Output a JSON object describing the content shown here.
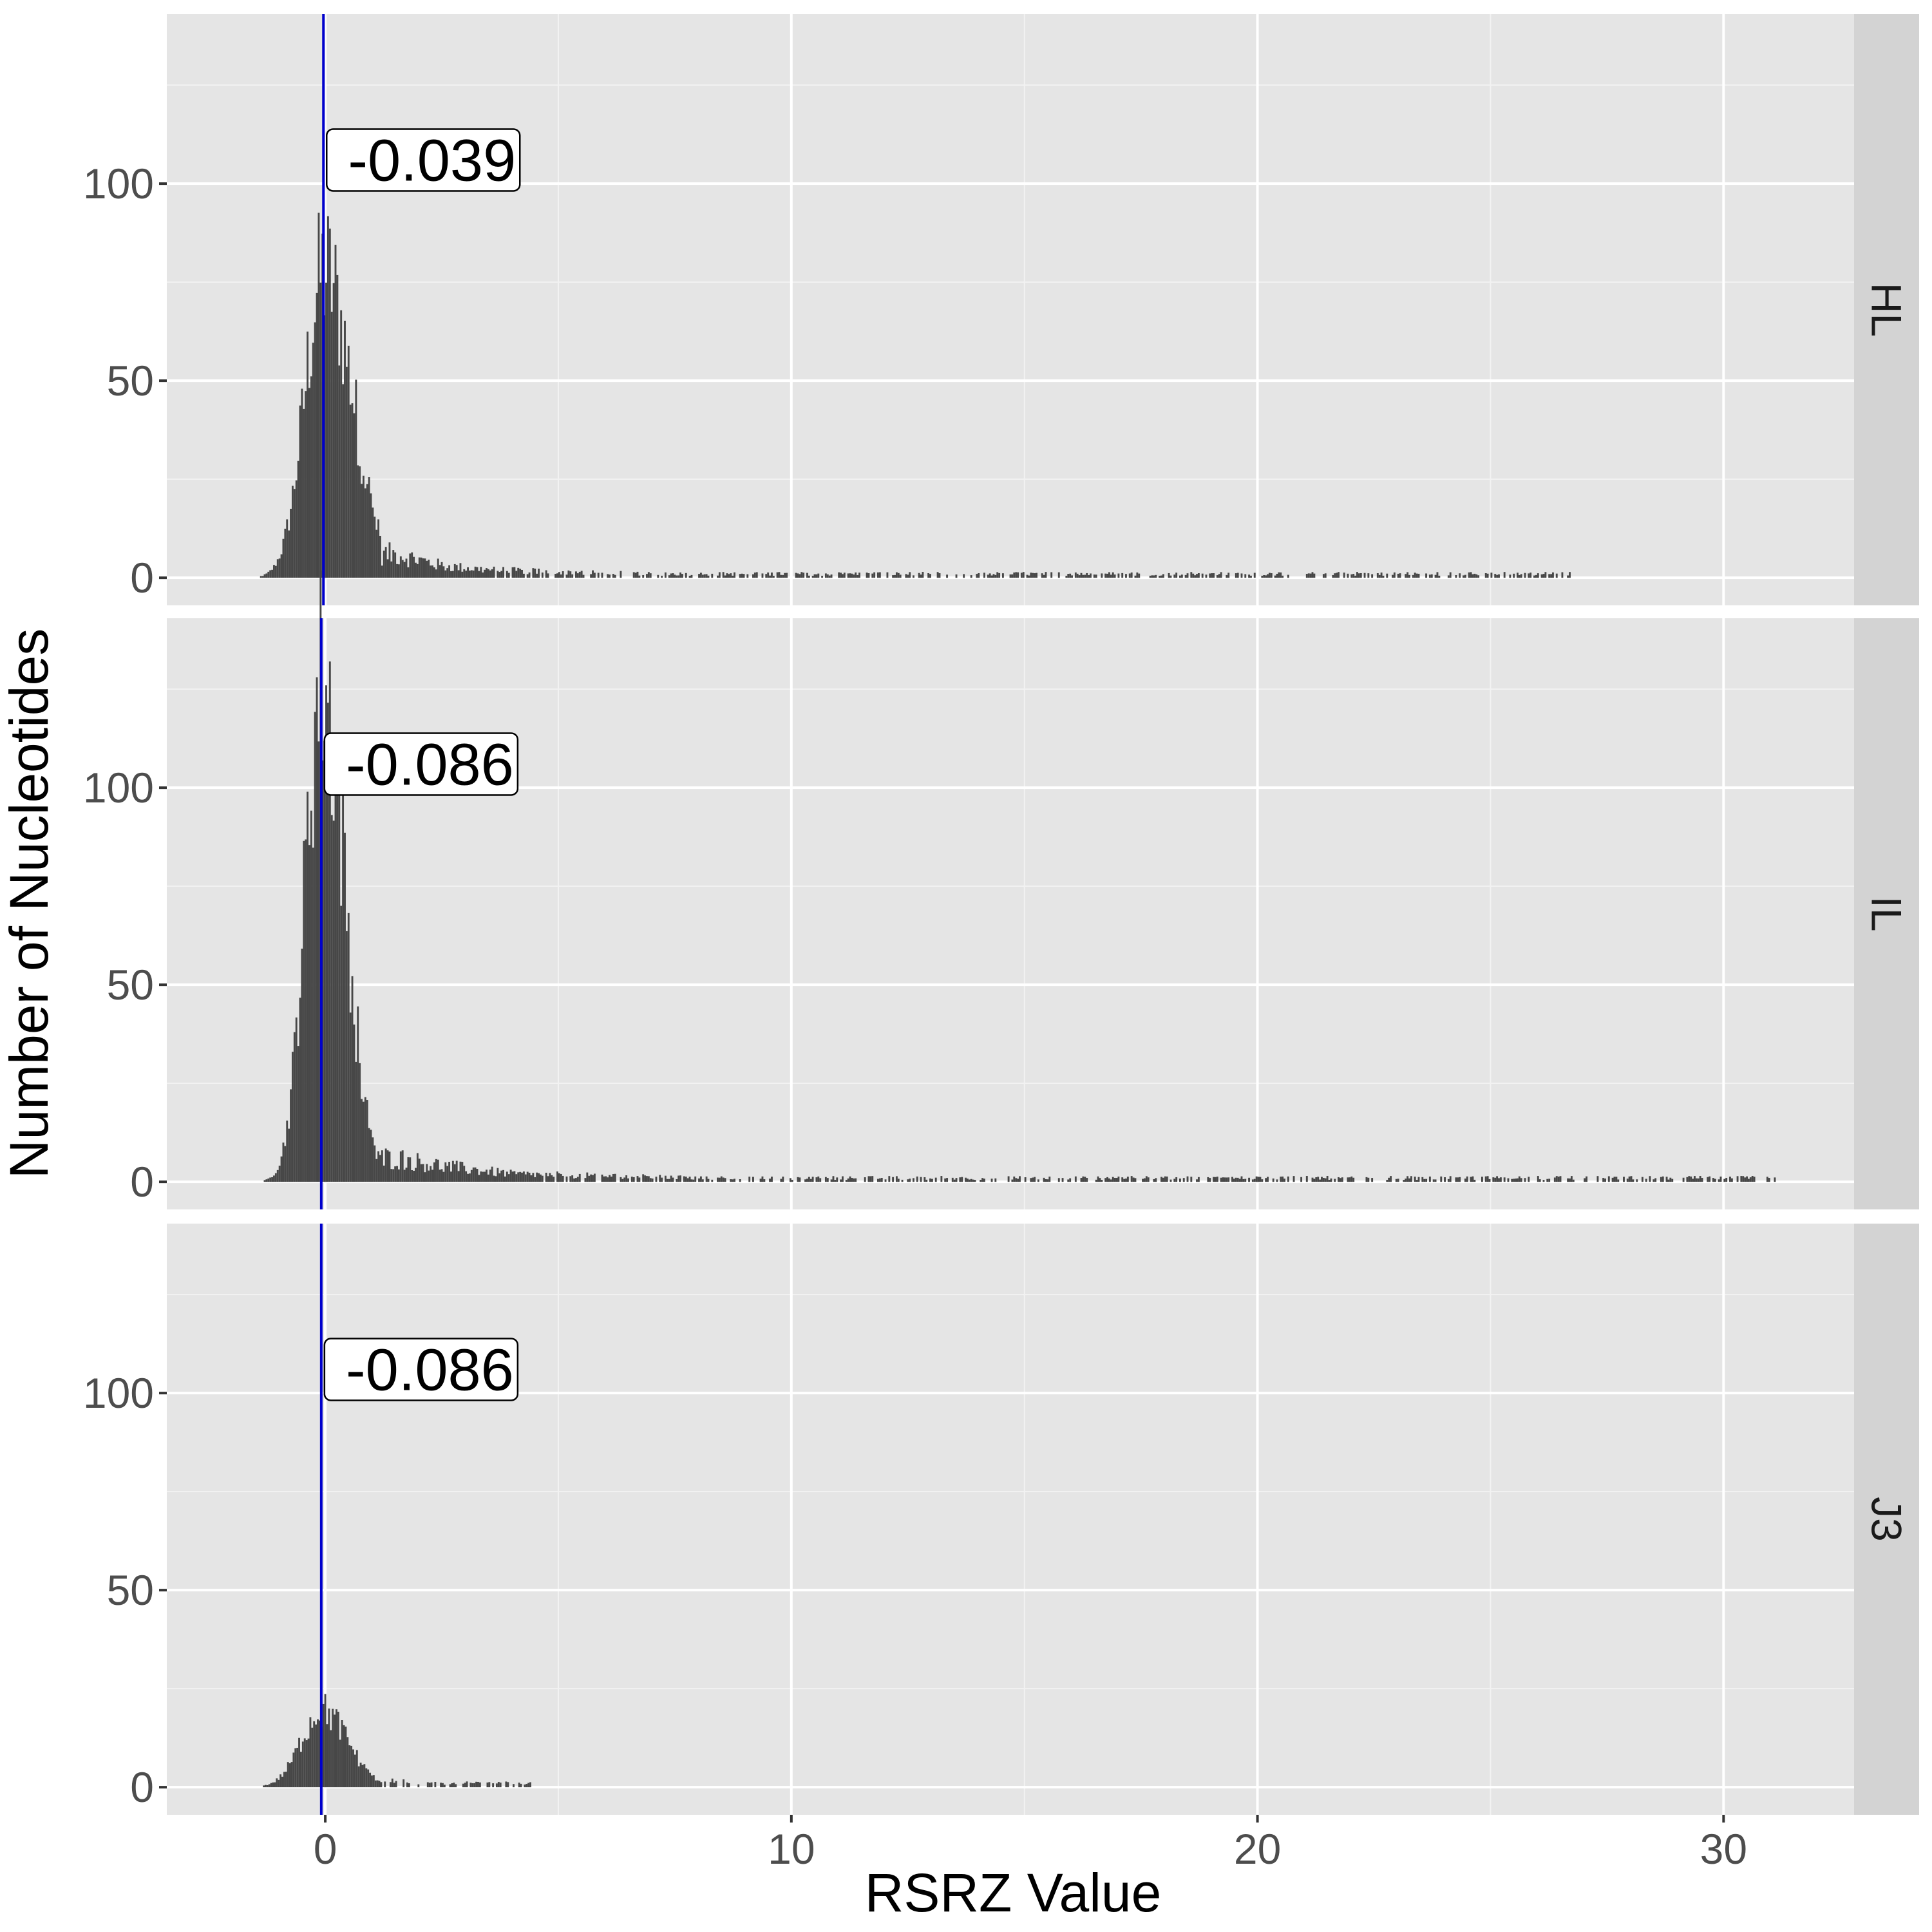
{
  "chart_data": {
    "type": "bar",
    "subtype": "faceted-histogram",
    "xlabel": "RSRZ Value",
    "ylabel": "Number of Nucleotides",
    "xlim": [
      -3.4,
      32.8
    ],
    "ylim": [
      -7,
      143
    ],
    "x_ticks": [
      0,
      10,
      20,
      30
    ],
    "y_ticks": [
      0,
      50,
      100
    ],
    "grid": true,
    "facet_direction": "rows",
    "colors": {
      "bars": "#474747",
      "median_line": "#0000cc",
      "panel_background": "#e5e5e5",
      "strip_background": "#d3d3d3"
    },
    "panels": [
      {
        "name": "HL",
        "median": -0.039,
        "median_label": "-0.039",
        "sd_left": 0.42,
        "sd_right": 0.6,
        "peak": 80,
        "tail": [
          [
            1.5,
            6
          ],
          [
            2.5,
            3
          ],
          [
            3.5,
            2
          ],
          [
            5,
            1.5
          ],
          [
            7,
            1
          ],
          [
            9,
            1
          ],
          [
            12,
            1
          ],
          [
            18.5,
            1
          ],
          [
            20.3,
            1
          ],
          [
            26.7,
            1
          ]
        ],
        "range": [
          -1.6,
          26.7
        ]
      },
      {
        "name": "IL",
        "median": -0.086,
        "median_label": "-0.086",
        "sd_left": 0.36,
        "sd_right": 0.48,
        "peak": 132,
        "tail": [
          [
            1.5,
            6
          ],
          [
            2.5,
            4
          ],
          [
            4,
            2
          ],
          [
            6,
            1.5
          ],
          [
            8,
            1
          ],
          [
            10,
            1
          ],
          [
            12,
            1
          ],
          [
            15.5,
            1
          ],
          [
            20.1,
            1
          ],
          [
            31.1,
            1
          ]
        ],
        "range": [
          -1.8,
          31.1
        ]
      },
      {
        "name": "J3",
        "median": -0.086,
        "median_label": "-0.086",
        "sd_left": 0.45,
        "sd_right": 0.55,
        "peak": 20,
        "tail": [
          [
            1.5,
            1.5
          ],
          [
            2.5,
            1
          ],
          [
            3.5,
            1
          ],
          [
            4.4,
            1
          ]
        ],
        "range": [
          -1.9,
          4.4
        ]
      }
    ]
  }
}
